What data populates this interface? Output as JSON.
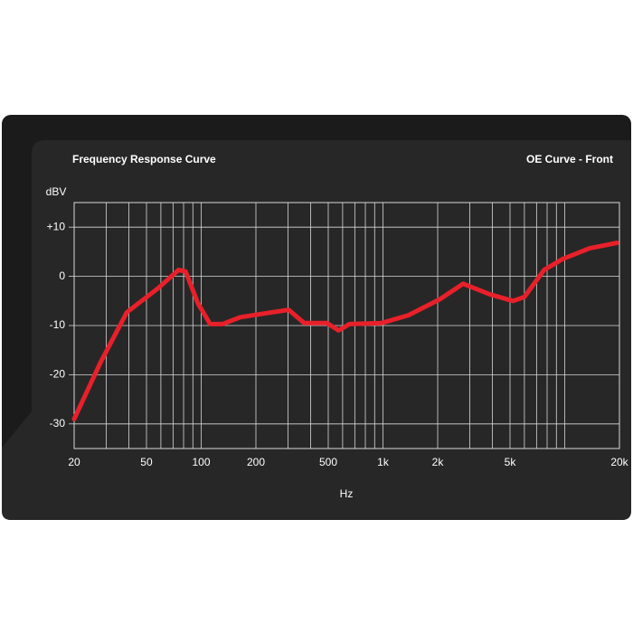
{
  "chart_data": {
    "type": "line",
    "title": "Frequency Response Curve",
    "subtitle": "OE Curve - Front",
    "y_label": "dBV",
    "x_label": "Hz",
    "xscale": "log",
    "grid": true,
    "xlim": [
      20,
      20000
    ],
    "ylim": [
      -35,
      15
    ],
    "xticks": [
      20,
      50,
      100,
      200,
      500,
      {
        "value": 1000,
        "label": "1k"
      },
      {
        "value": 2000,
        "label": "2k"
      },
      {
        "value": 5000,
        "label": "5k"
      },
      {
        "value": 20000,
        "label": "20k"
      }
    ],
    "xminorticks": [
      30,
      40,
      60,
      70,
      80,
      90,
      300,
      400,
      600,
      700,
      800,
      900,
      3000,
      4000,
      6000,
      7000,
      8000,
      9000,
      10000
    ],
    "yticks": [
      {
        "value": 10,
        "label": "+10"
      },
      0,
      -10,
      -20,
      -30
    ],
    "series": [
      {
        "name": "OE Curve - Front",
        "color": "#e8202a",
        "x": [
          20,
          28,
          39,
          58,
          75,
          82,
          96,
          112,
          131,
          164,
          246,
          303,
          369,
          492,
          570,
          654,
          980,
          1380,
          2070,
          2760,
          3900,
          5200,
          6000,
          7700,
          9700,
          13700,
          19400
        ],
        "values": [
          -29,
          -17.4,
          -7.3,
          -2.4,
          1.3,
          1,
          -5.5,
          -9.7,
          -9.7,
          -8.3,
          -7.3,
          -6.8,
          -9.5,
          -9.5,
          -11,
          -9.7,
          -9.5,
          -7.9,
          -4.6,
          -1.5,
          -3.7,
          -5,
          -4.2,
          1.3,
          3.5,
          5.7,
          6.8
        ]
      }
    ]
  }
}
